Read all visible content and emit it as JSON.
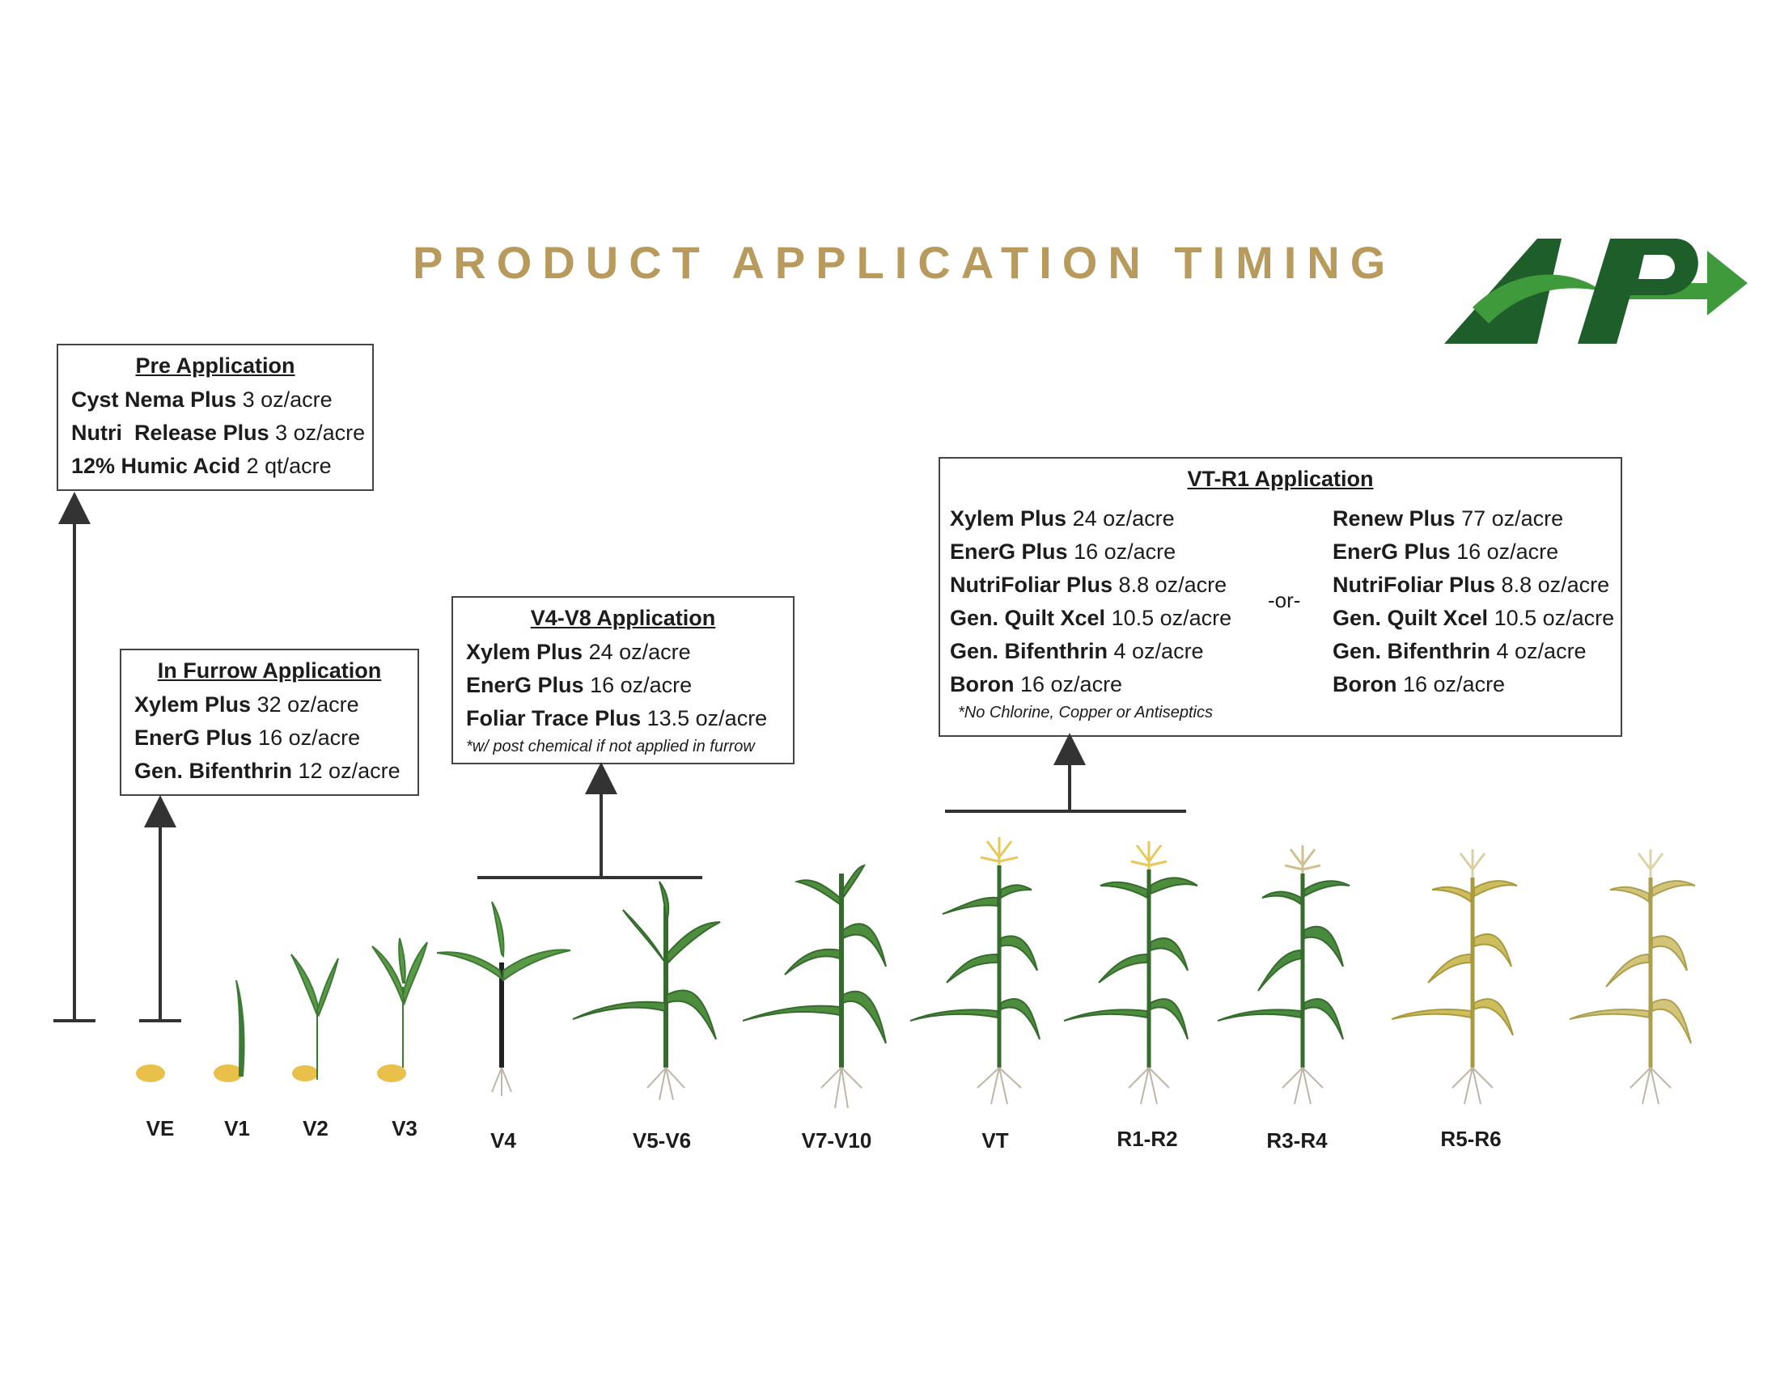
{
  "title": "PRODUCT APPLICATION TIMING",
  "logo": {
    "text": "AP",
    "colors": {
      "dark": "#1e5e2a",
      "light": "#3f9a3c"
    }
  },
  "pre_application": {
    "title": "Pre Application",
    "items": [
      {
        "product": "Cyst Nema Plus",
        "rate": "3 oz/acre"
      },
      {
        "product": "Nutri  Release Plus",
        "rate": "3 oz/acre"
      },
      {
        "product": "12% Humic Acid",
        "rate": "2 qt/acre"
      }
    ]
  },
  "in_furrow": {
    "title": "In Furrow Application",
    "items": [
      {
        "product": "Xylem Plus",
        "rate": "32 oz/acre"
      },
      {
        "product": "EnerG Plus",
        "rate": "16 oz/acre"
      },
      {
        "product": "Gen. Bifenthrin",
        "rate": "12 oz/acre"
      }
    ]
  },
  "v4_v8": {
    "title": "V4-V8 Application",
    "items": [
      {
        "product": "Xylem Plus",
        "rate": "24 oz/acre"
      },
      {
        "product": "EnerG Plus",
        "rate": "16 oz/acre"
      },
      {
        "product": "Foliar Trace Plus",
        "rate": "13.5 oz/acre"
      }
    ],
    "note": "*w/ post chemical if not applied in furrow"
  },
  "vt_r1": {
    "title": "VT-R1 Application",
    "left": [
      {
        "product": "Xylem Plus",
        "rate": "24 oz/acre"
      },
      {
        "product": "EnerG Plus",
        "rate": "16 oz/acre"
      },
      {
        "product": "NutriFoliar Plus",
        "rate": "8.8 oz/acre"
      },
      {
        "product": "Gen. Quilt Xcel",
        "rate": "10.5 oz/acre"
      },
      {
        "product": "Gen. Bifenthrin",
        "rate": "4 oz/acre"
      },
      {
        "product": "Boron",
        "rate": "16 oz/acre"
      }
    ],
    "or_label": "-or-",
    "right": [
      {
        "product": "Renew Plus",
        "rate": "77 oz/acre"
      },
      {
        "product": "EnerG Plus",
        "rate": "16 oz/acre"
      },
      {
        "product": "NutriFoliar Plus",
        "rate": "8.8 oz/acre"
      },
      {
        "product": "Gen. Quilt Xcel",
        "rate": "10.5 oz/acre"
      },
      {
        "product": "Gen. Bifenthrin",
        "rate": "4 oz/acre"
      },
      {
        "product": "Boron",
        "rate": "16 oz/acre"
      }
    ],
    "note": "*No Chlorine, Copper or Antiseptics"
  },
  "stages": [
    "VE",
    "V1",
    "V2",
    "V3",
    "V4",
    "V5-V6",
    "V7-V10",
    "VT",
    "R1-R2",
    "R3-R4",
    "R5-R6"
  ],
  "colors": {
    "title": "#b89a5c",
    "leaf_green": "#3d7a35",
    "tassel_yellow": "#e8c85a",
    "dry_yellow": "#c9b85c"
  }
}
